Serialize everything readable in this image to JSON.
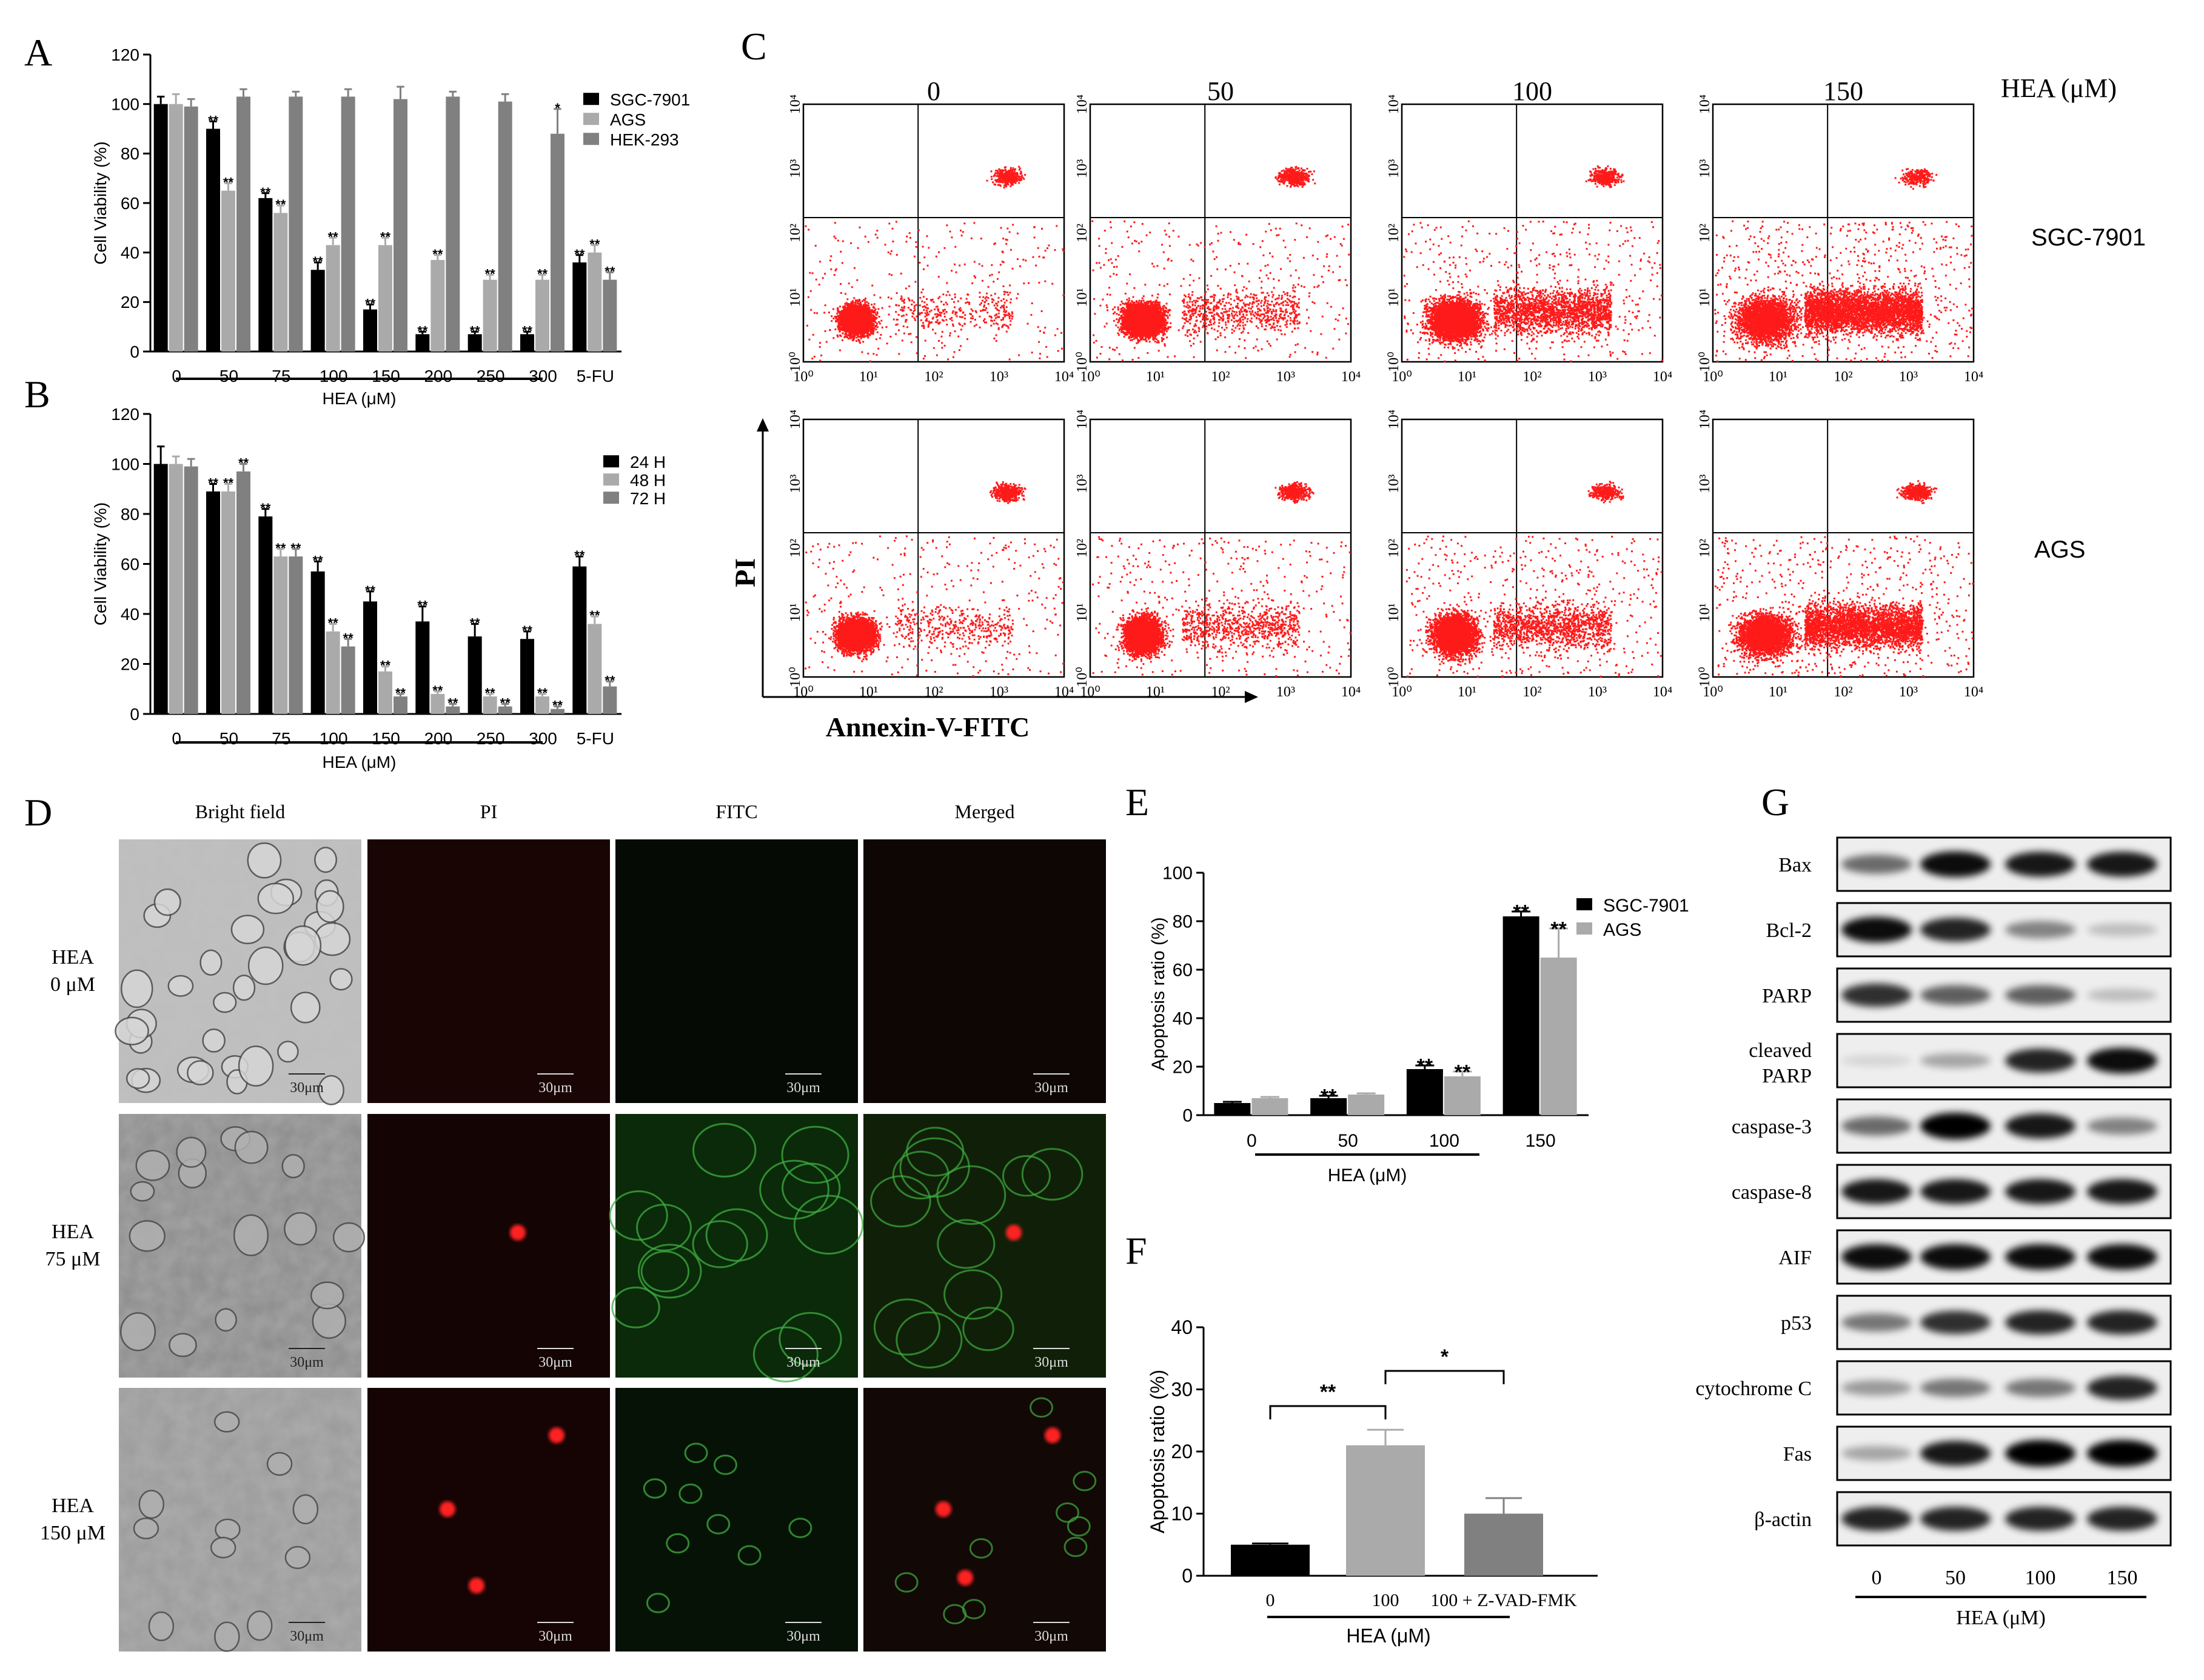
{
  "panels": {
    "A": {
      "letter": "A",
      "chart_data": {
        "type": "bar",
        "xlabel": "HEA (μM)",
        "ylabel": "Cell Viability (%)",
        "ylim": [
          0,
          120
        ],
        "yticks": [
          "0",
          "20",
          "40",
          "60",
          "80",
          "100",
          "120"
        ],
        "categories": [
          "0",
          "50",
          "75",
          "100",
          "150",
          "200",
          "250",
          "300",
          "5-FU"
        ],
        "series": [
          {
            "name": "SGC-7901",
            "color": "#000000",
            "values": [
              100,
              90,
              62,
              33,
              17,
              7,
              7,
              7,
              36
            ],
            "errors": [
              3,
              3,
              2,
              3,
              2,
              1,
              1,
              1,
              3
            ],
            "sig": [
              "",
              "**",
              "**",
              "**",
              "**",
              "**",
              "**",
              "**",
              "**"
            ]
          },
          {
            "name": "AGS",
            "color": "#aaaaaa",
            "values": [
              100,
              65,
              56,
              43,
              43,
              37,
              29,
              29,
              40
            ],
            "errors": [
              4,
              3,
              3,
              3,
              3,
              2,
              2,
              2,
              3
            ],
            "sig": [
              "",
              "**",
              "**",
              "**",
              "**",
              "**",
              "**",
              "**",
              "**"
            ]
          },
          {
            "name": "HEK-293",
            "color": "#808080",
            "values": [
              99,
              103,
              103,
              103,
              102,
              103,
              101,
              88,
              29
            ],
            "errors": [
              3,
              3,
              2,
              3,
              5,
              2,
              3,
              10,
              3
            ],
            "sig": [
              "",
              "",
              "",
              "",
              "",
              "",
              "",
              "*",
              "**"
            ]
          }
        ]
      }
    },
    "B": {
      "letter": "B",
      "chart_data": {
        "type": "bar",
        "xlabel": "HEA (μM)",
        "ylabel": "Cell Viability (%)",
        "ylim": [
          0,
          120
        ],
        "yticks": [
          "0",
          "20",
          "40",
          "60",
          "80",
          "100",
          "120"
        ],
        "categories": [
          "0",
          "50",
          "75",
          "100",
          "150",
          "200",
          "250",
          "300",
          "5-FU"
        ],
        "series": [
          {
            "name": "24 H",
            "color": "#000000",
            "values": [
              100,
              89,
              79,
              57,
              45,
              37,
              31,
              30,
              59
            ],
            "errors": [
              7,
              3,
              3,
              4,
              4,
              6,
              5,
              3,
              4
            ],
            "sig": [
              "",
              "**",
              "**",
              "**",
              "**",
              "**",
              "**",
              "**",
              "**"
            ]
          },
          {
            "name": "48 H",
            "color": "#aaaaaa",
            "values": [
              100,
              89,
              63,
              33,
              17,
              8,
              7,
              7,
              36
            ],
            "errors": [
              3,
              3,
              3,
              3,
              2,
              1,
              1,
              1,
              3
            ],
            "sig": [
              "",
              "**",
              "**",
              "**",
              "**",
              "**",
              "**",
              "**",
              "**"
            ]
          },
          {
            "name": "72 H",
            "color": "#808080",
            "values": [
              99,
              97,
              63,
              27,
              7,
              3,
              3,
              2,
              11
            ],
            "errors": [
              3,
              3,
              3,
              3,
              1,
              1,
              1,
              1,
              2
            ],
            "sig": [
              "",
              "**",
              "**",
              "**",
              "**",
              "**",
              "**",
              "**",
              "**"
            ]
          }
        ]
      }
    },
    "C": {
      "letter": "C",
      "col_labels": [
        "0",
        "50",
        "100",
        "150"
      ],
      "unit_label": "HEA (μM)",
      "row_labels": [
        "SGC-7901",
        "AGS"
      ],
      "y_axis_label": "PI",
      "x_axis_label": "Annexin-V-FITC",
      "tick_labels": [
        "10⁰",
        "10¹",
        "10²",
        "10³",
        "10⁴"
      ],
      "point_color": "#ff1a1a"
    },
    "D": {
      "letter": "D",
      "col_headers": [
        "Bright field",
        "PI",
        "FITC",
        "Merged"
      ],
      "rows": [
        {
          "label_l1": "HEA",
          "label_l2": "0 μM"
        },
        {
          "label_l1": "HEA",
          "label_l2": "75 μM"
        },
        {
          "label_l1": "HEA",
          "label_l2": "150 μM"
        }
      ],
      "scale_bar": "30μm"
    },
    "E": {
      "letter": "E",
      "chart_data": {
        "type": "bar",
        "xlabel": "HEA (μM)",
        "ylabel": "Apoptosis ratio (%)",
        "ylim": [
          0,
          100
        ],
        "yticks": [
          "0",
          "20",
          "40",
          "60",
          "80",
          "100"
        ],
        "categories": [
          "0",
          "50",
          "100",
          "150"
        ],
        "series": [
          {
            "name": "SGC-7901",
            "color": "#000000",
            "values": [
              5,
              7,
              19,
              82
            ],
            "errors": [
              0.5,
              1,
              1.5,
              2
            ],
            "sig": [
              "",
              "**",
              "**",
              "**"
            ]
          },
          {
            "name": "AGS",
            "color": "#aaaaaa",
            "values": [
              7,
              8.5,
              16,
              65
            ],
            "errors": [
              0.5,
              0.5,
              2,
              12
            ],
            "sig": [
              "",
              "",
              "**",
              "**"
            ]
          }
        ]
      }
    },
    "F": {
      "letter": "F",
      "chart_data": {
        "type": "bar",
        "xlabel": "HEA (μM)",
        "ylabel": "Apoptosis ratio (%)",
        "ylim": [
          0,
          40
        ],
        "yticks": [
          "0",
          "10",
          "20",
          "30",
          "40"
        ],
        "categories": [
          "0",
          "100",
          "100 + Z-VAD-FMK"
        ],
        "values": [
          5,
          21,
          10
        ],
        "errors": [
          0.2,
          2.5,
          2.5
        ],
        "colors": [
          "#000000",
          "#aaaaaa",
          "#808080"
        ],
        "brackets": [
          {
            "from": 0,
            "to": 1,
            "label": "**"
          },
          {
            "from": 1,
            "to": 2,
            "label": "*"
          }
        ]
      }
    },
    "G": {
      "letter": "G",
      "proteins": [
        "Bax",
        "Bcl-2",
        "PARP",
        "cleaved PARP",
        "caspase-3",
        "caspase-8",
        "AIF",
        "p53",
        "cytochrome C",
        "Fas",
        "β-actin"
      ],
      "lanes": [
        "0",
        "50",
        "100",
        "150"
      ],
      "xlabel": "HEA (μM)",
      "intensities": [
        [
          0.55,
          0.95,
          0.9,
          0.9
        ],
        [
          0.95,
          0.85,
          0.45,
          0.2
        ],
        [
          0.8,
          0.6,
          0.6,
          0.2
        ],
        [
          0.1,
          0.3,
          0.85,
          0.95
        ],
        [
          0.55,
          1.0,
          0.9,
          0.45
        ],
        [
          0.9,
          0.9,
          0.9,
          0.9
        ],
        [
          0.95,
          0.95,
          0.95,
          0.95
        ],
        [
          0.5,
          0.8,
          0.85,
          0.85
        ],
        [
          0.35,
          0.5,
          0.5,
          0.85
        ],
        [
          0.3,
          0.9,
          1.0,
          1.0
        ],
        [
          0.85,
          0.85,
          0.85,
          0.85
        ]
      ]
    }
  }
}
